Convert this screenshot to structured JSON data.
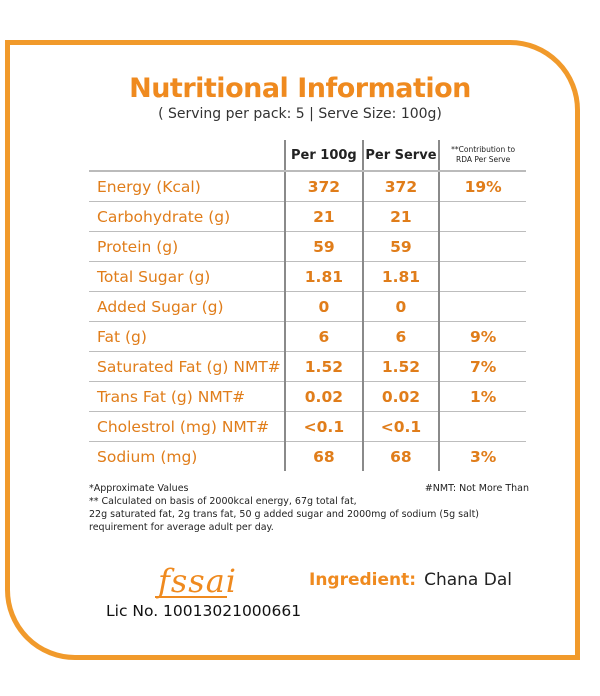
{
  "title": "Nutritional Information",
  "subtitle": "( Serving per pack: 5 | Serve Size: 100g)",
  "table": {
    "headers": {
      "per100": "Per 100g",
      "perServe": "Per Serve",
      "rda_line1": "**Contribution to",
      "rda_line2": "RDA Per Serve"
    },
    "rows": [
      {
        "label": "Energy (Kcal)",
        "per100": "372",
        "perServe": "372",
        "rda": "19%"
      },
      {
        "label": "Carbohydrate (g)",
        "per100": "21",
        "perServe": "21",
        "rda": ""
      },
      {
        "label": "Protein (g)",
        "per100": "59",
        "perServe": "59",
        "rda": ""
      },
      {
        "label": "Total Sugar (g)",
        "per100": "1.81",
        "perServe": "1.81",
        "rda": ""
      },
      {
        "label": "Added Sugar (g)",
        "per100": "0",
        "perServe": "0",
        "rda": ""
      },
      {
        "label": "Fat (g)",
        "per100": "6",
        "perServe": "6",
        "rda": "9%"
      },
      {
        "label": "Saturated Fat (g) NMT#",
        "per100": "1.52",
        "perServe": "1.52",
        "rda": "7%"
      },
      {
        "label": "Trans Fat (g) NMT#",
        "per100": "0.02",
        "perServe": "0.02",
        "rda": "1%"
      },
      {
        "label": "Cholestrol (mg) NMT#",
        "per100": "<0.1",
        "perServe": "<0.1",
        "rda": ""
      },
      {
        "label": "Sodium (mg)",
        "per100": "68",
        "perServe": "68",
        "rda": "3%"
      }
    ]
  },
  "notes": {
    "approx": "*Approximate Values",
    "nmt": "#NMT: Not More Than",
    "calc_line1": "** Calculated on basis of 2000kcal energy, 67g total fat,",
    "calc_line2": "22g saturated fat, 2g trans fat, 50 g added sugar and 2000mg of sodium (5g salt)",
    "calc_line3": "requirement for average adult per day."
  },
  "fssai": {
    "logo": "fssai",
    "lic": "Lic No. 10013021000661"
  },
  "ingredient": {
    "label": "Ingredient:",
    "value": "Chana Dal"
  },
  "colors": {
    "accent": "#ef8a1f",
    "border": "#f19a2b"
  }
}
